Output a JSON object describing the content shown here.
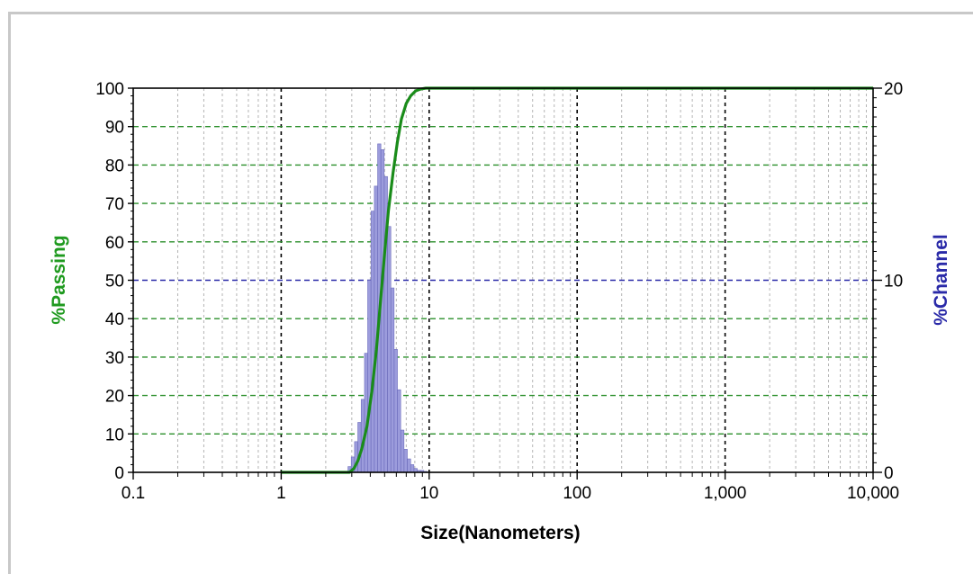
{
  "chart_data": {
    "type": "bar+line",
    "title": "",
    "xlabel": "Size(Nanometers)",
    "xscale": "log",
    "xlim": [
      0.1,
      10000
    ],
    "x_tick_labels": [
      "0.1",
      "1",
      "10",
      "100",
      "1,000",
      "10,000"
    ],
    "x_tick_values": [
      0.1,
      1,
      10,
      100,
      1000,
      10000
    ],
    "y_left": {
      "label": "%Passing",
      "color": "#1f9a1f",
      "ylim": [
        0,
        100
      ],
      "ticks": [
        "0",
        "10",
        "20",
        "30",
        "40",
        "50",
        "60",
        "70",
        "80",
        "90",
        "100"
      ]
    },
    "y_right": {
      "label": "%Channel",
      "color": "#2a2aa8",
      "ylim": [
        0,
        20
      ],
      "ticks": [
        "0",
        "10",
        "20"
      ]
    },
    "grid": true,
    "series": [
      {
        "name": "%Passing",
        "kind": "line",
        "axis": "left",
        "color": "#1a8c1a",
        "x": [
          1.0,
          2.5,
          2.9,
          3.1,
          3.3,
          3.5,
          3.8,
          4.1,
          4.4,
          4.7,
          5.0,
          5.3,
          5.7,
          6.1,
          6.5,
          7.0,
          7.5,
          8.1,
          8.8,
          9.5,
          10.0,
          10000
        ],
        "y": [
          0,
          0,
          0,
          1,
          3,
          6,
          12,
          21,
          32,
          45,
          57,
          68,
          78,
          86,
          92,
          96,
          98,
          99.3,
          99.8,
          100,
          100,
          100
        ]
      },
      {
        "name": "%Channel",
        "kind": "bar",
        "axis": "right",
        "color": "#9c9cdc",
        "x": [
          2.9,
          3.05,
          3.21,
          3.38,
          3.56,
          3.75,
          3.94,
          4.15,
          4.37,
          4.6,
          4.84,
          5.1,
          5.37,
          5.65,
          5.95,
          6.26,
          6.59,
          6.94,
          7.31,
          7.69,
          8.1,
          8.52,
          8.97,
          9.45
        ],
        "y": [
          0.3,
          0.8,
          1.6,
          2.6,
          3.8,
          6.2,
          10.0,
          13.6,
          14.9,
          17.1,
          16.8,
          15.4,
          12.8,
          9.6,
          6.4,
          4.3,
          2.2,
          1.2,
          0.7,
          0.4,
          0.2,
          0.1,
          0.1,
          0.05
        ]
      }
    ]
  }
}
